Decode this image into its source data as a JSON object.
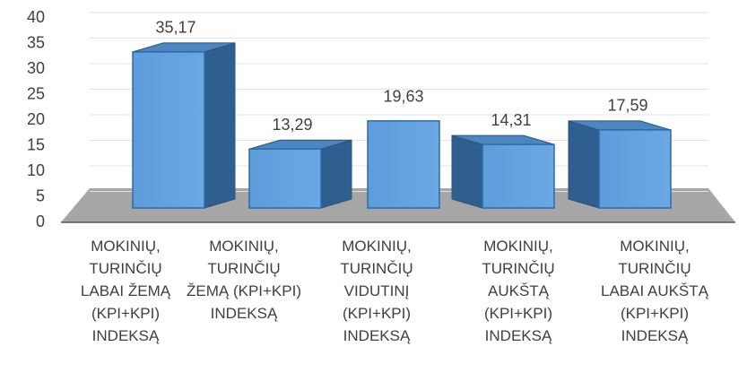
{
  "chart_data": {
    "type": "bar3d",
    "categories": [
      "MOKINIŲ, TURINČIŲ LABAI ŽEMĄ (KPI+KPI) INDEKSĄ",
      "MOKINIŲ, TURINČIŲ ŽEMĄ (KPI+KPI) INDEKSĄ",
      "MOKINIŲ, TURINČIŲ VIDUTINĮ (KPI+KPI) INDEKSĄ",
      "MOKINIŲ, TURINČIŲ AUKŠTĄ (KPI+KPI) INDEKSĄ",
      "MOKINIŲ, TURINČIŲ LABAI AUKŠTĄ (KPI+KPI) INDEKSĄ"
    ],
    "values": [
      35.17,
      13.29,
      19.63,
      14.31,
      17.59
    ],
    "value_labels": [
      "35,17",
      "13,29",
      "19,63",
      "14,31",
      "17,59"
    ],
    "color": "#5b9bd5",
    "ylim": [
      0,
      40
    ],
    "yticks": [
      0,
      5,
      10,
      15,
      20,
      25,
      30,
      35,
      40
    ],
    "grid": true
  }
}
